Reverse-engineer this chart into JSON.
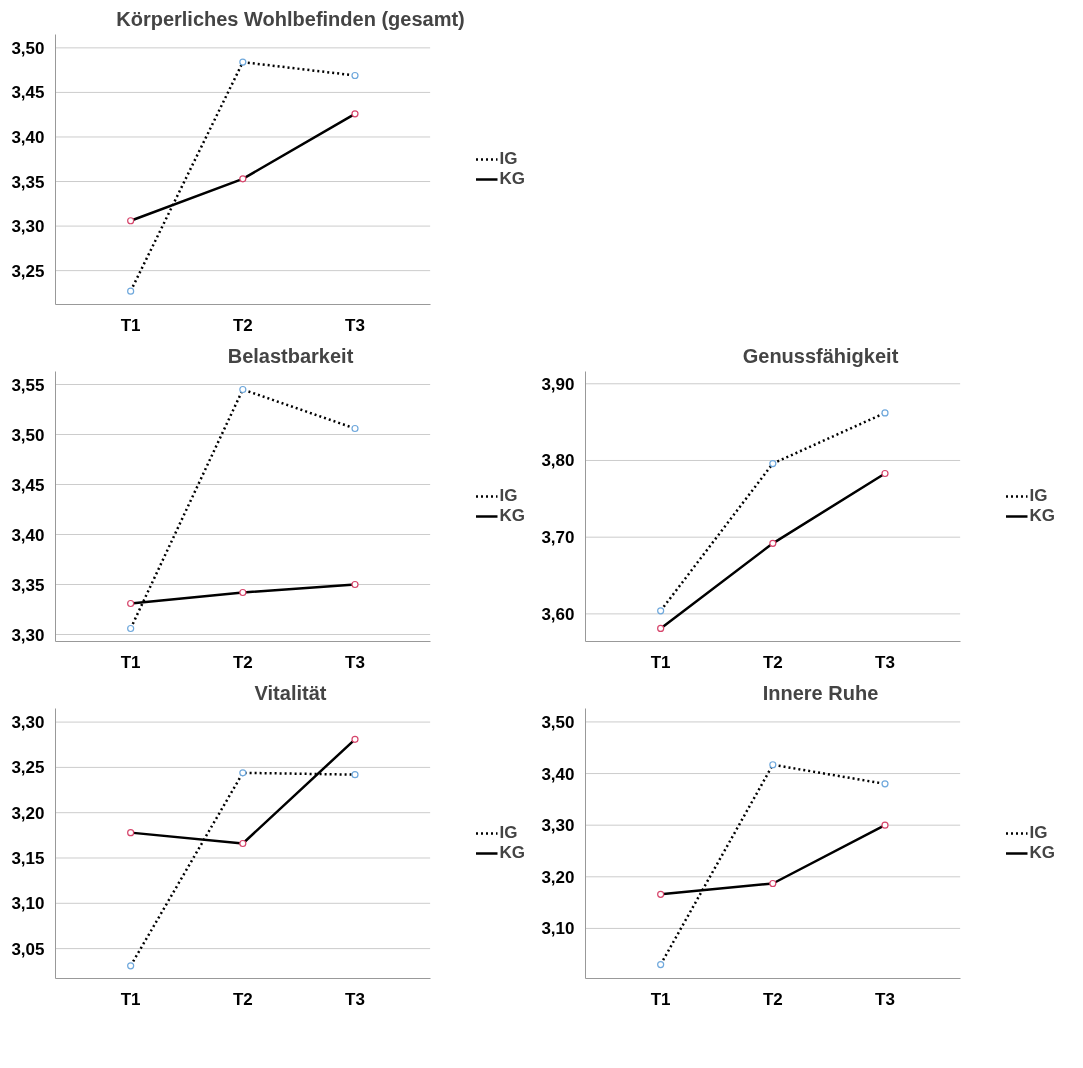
{
  "chart_data": [
    {
      "type": "line",
      "title": "Körperliches Wohlbefinden (gesamt)",
      "categories": [
        "T1",
        "T2",
        "T3"
      ],
      "ylim": [
        3.212,
        3.515
      ],
      "yticks": [
        {
          "value": 3.25,
          "label": "3,25"
        },
        {
          "value": 3.3,
          "label": "3,30"
        },
        {
          "value": 3.35,
          "label": "3,35"
        },
        {
          "value": 3.4,
          "label": "3,40"
        },
        {
          "value": 3.45,
          "label": "3,45"
        },
        {
          "value": 3.5,
          "label": "3,50"
        }
      ],
      "grid": "y",
      "legend": "right",
      "marker": "circle",
      "series": [
        {
          "name": "IG",
          "color": "#000000",
          "colors": [
            "#6fa8dc",
            "#6fa8dc",
            "#6fa8dc"
          ],
          "line_style": "dotted",
          "values": [
            3.227,
            3.484,
            3.469
          ]
        },
        {
          "name": "KG",
          "color": "#000000",
          "colors": [
            "#d6456b",
            "#d6456b",
            "#d6456b"
          ],
          "line_style": "solid",
          "values": [
            3.306,
            3.353,
            3.426
          ]
        }
      ]
    },
    {
      "type": "line",
      "title": "Belastbarkeit",
      "categories": [
        "T1",
        "T2",
        "T3"
      ],
      "ylim": [
        3.293,
        3.563
      ],
      "yticks": [
        {
          "value": 3.3,
          "label": "3,30"
        },
        {
          "value": 3.35,
          "label": "3,35"
        },
        {
          "value": 3.4,
          "label": "3,40"
        },
        {
          "value": 3.45,
          "label": "3,45"
        },
        {
          "value": 3.5,
          "label": "3,50"
        },
        {
          "value": 3.55,
          "label": "3,55"
        }
      ],
      "grid": "y",
      "legend": "right",
      "marker": "circle",
      "series": [
        {
          "name": "IG",
          "color": "#000000",
          "colors": [
            "#6fa8dc",
            "#6fa8dc",
            "#6fa8dc"
          ],
          "line_style": "dotted",
          "values": [
            3.306,
            3.545,
            3.506
          ]
        },
        {
          "name": "KG",
          "color": "#000000",
          "colors": [
            "#d6456b",
            "#d6456b",
            "#d6456b"
          ],
          "line_style": "solid",
          "values": [
            3.331,
            3.342,
            3.35
          ]
        }
      ]
    },
    {
      "type": "line",
      "title": "Genussfähigkeit",
      "categories": [
        "T1",
        "T2",
        "T3"
      ],
      "ylim": [
        3.564,
        3.916
      ],
      "yticks": [
        {
          "value": 3.6,
          "label": "3,60"
        },
        {
          "value": 3.7,
          "label": "3,70"
        },
        {
          "value": 3.8,
          "label": "3,80"
        },
        {
          "value": 3.9,
          "label": "3,90"
        }
      ],
      "grid": "y",
      "legend": "right",
      "marker": "circle",
      "series": [
        {
          "name": "IG",
          "color": "#000000",
          "colors": [
            "#6fa8dc",
            "#6fa8dc",
            "#6fa8dc"
          ],
          "line_style": "dotted",
          "values": [
            3.604,
            3.796,
            3.862
          ]
        },
        {
          "name": "KG",
          "color": "#000000",
          "colors": [
            "#d6456b",
            "#d6456b",
            "#d6456b"
          ],
          "line_style": "solid",
          "values": [
            3.581,
            3.692,
            3.783
          ]
        }
      ]
    },
    {
      "type": "line",
      "title": "Vitalität",
      "categories": [
        "T1",
        "T2",
        "T3"
      ],
      "ylim": [
        3.017,
        3.315
      ],
      "yticks": [
        {
          "value": 3.05,
          "label": "3,05"
        },
        {
          "value": 3.1,
          "label": "3,10"
        },
        {
          "value": 3.15,
          "label": "3,15"
        },
        {
          "value": 3.2,
          "label": "3,20"
        },
        {
          "value": 3.25,
          "label": "3,25"
        },
        {
          "value": 3.3,
          "label": "3,30"
        }
      ],
      "grid": "y",
      "legend": "right",
      "marker": "circle",
      "series": [
        {
          "name": "IG",
          "color": "#000000",
          "colors": [
            "#6fa8dc",
            "#6fa8dc",
            "#6fa8dc"
          ],
          "line_style": "dotted",
          "values": [
            3.031,
            3.244,
            3.242
          ]
        },
        {
          "name": "KG",
          "color": "#000000",
          "colors": [
            "#d6456b",
            "#d6456b",
            "#d6456b"
          ],
          "line_style": "solid",
          "values": [
            3.178,
            3.166,
            3.281
          ]
        }
      ]
    },
    {
      "type": "line",
      "title": "Innere Ruhe",
      "categories": [
        "T1",
        "T2",
        "T3"
      ],
      "ylim": [
        3.003,
        3.526
      ],
      "yticks": [
        {
          "value": 3.1,
          "label": "3,10"
        },
        {
          "value": 3.2,
          "label": "3,20"
        },
        {
          "value": 3.3,
          "label": "3,30"
        },
        {
          "value": 3.4,
          "label": "3,40"
        },
        {
          "value": 3.5,
          "label": "3,50"
        }
      ],
      "grid": "y",
      "legend": "right",
      "marker": "circle",
      "series": [
        {
          "name": "IG",
          "color": "#000000",
          "colors": [
            "#6fa8dc",
            "#6fa8dc",
            "#6fa8dc"
          ],
          "line_style": "dotted",
          "values": [
            3.03,
            3.417,
            3.38
          ]
        },
        {
          "name": "KG",
          "color": "#000000",
          "colors": [
            "#d6456b",
            "#d6456b",
            "#d6456b"
          ],
          "line_style": "solid",
          "values": [
            3.166,
            3.187,
            3.3
          ]
        }
      ]
    }
  ]
}
